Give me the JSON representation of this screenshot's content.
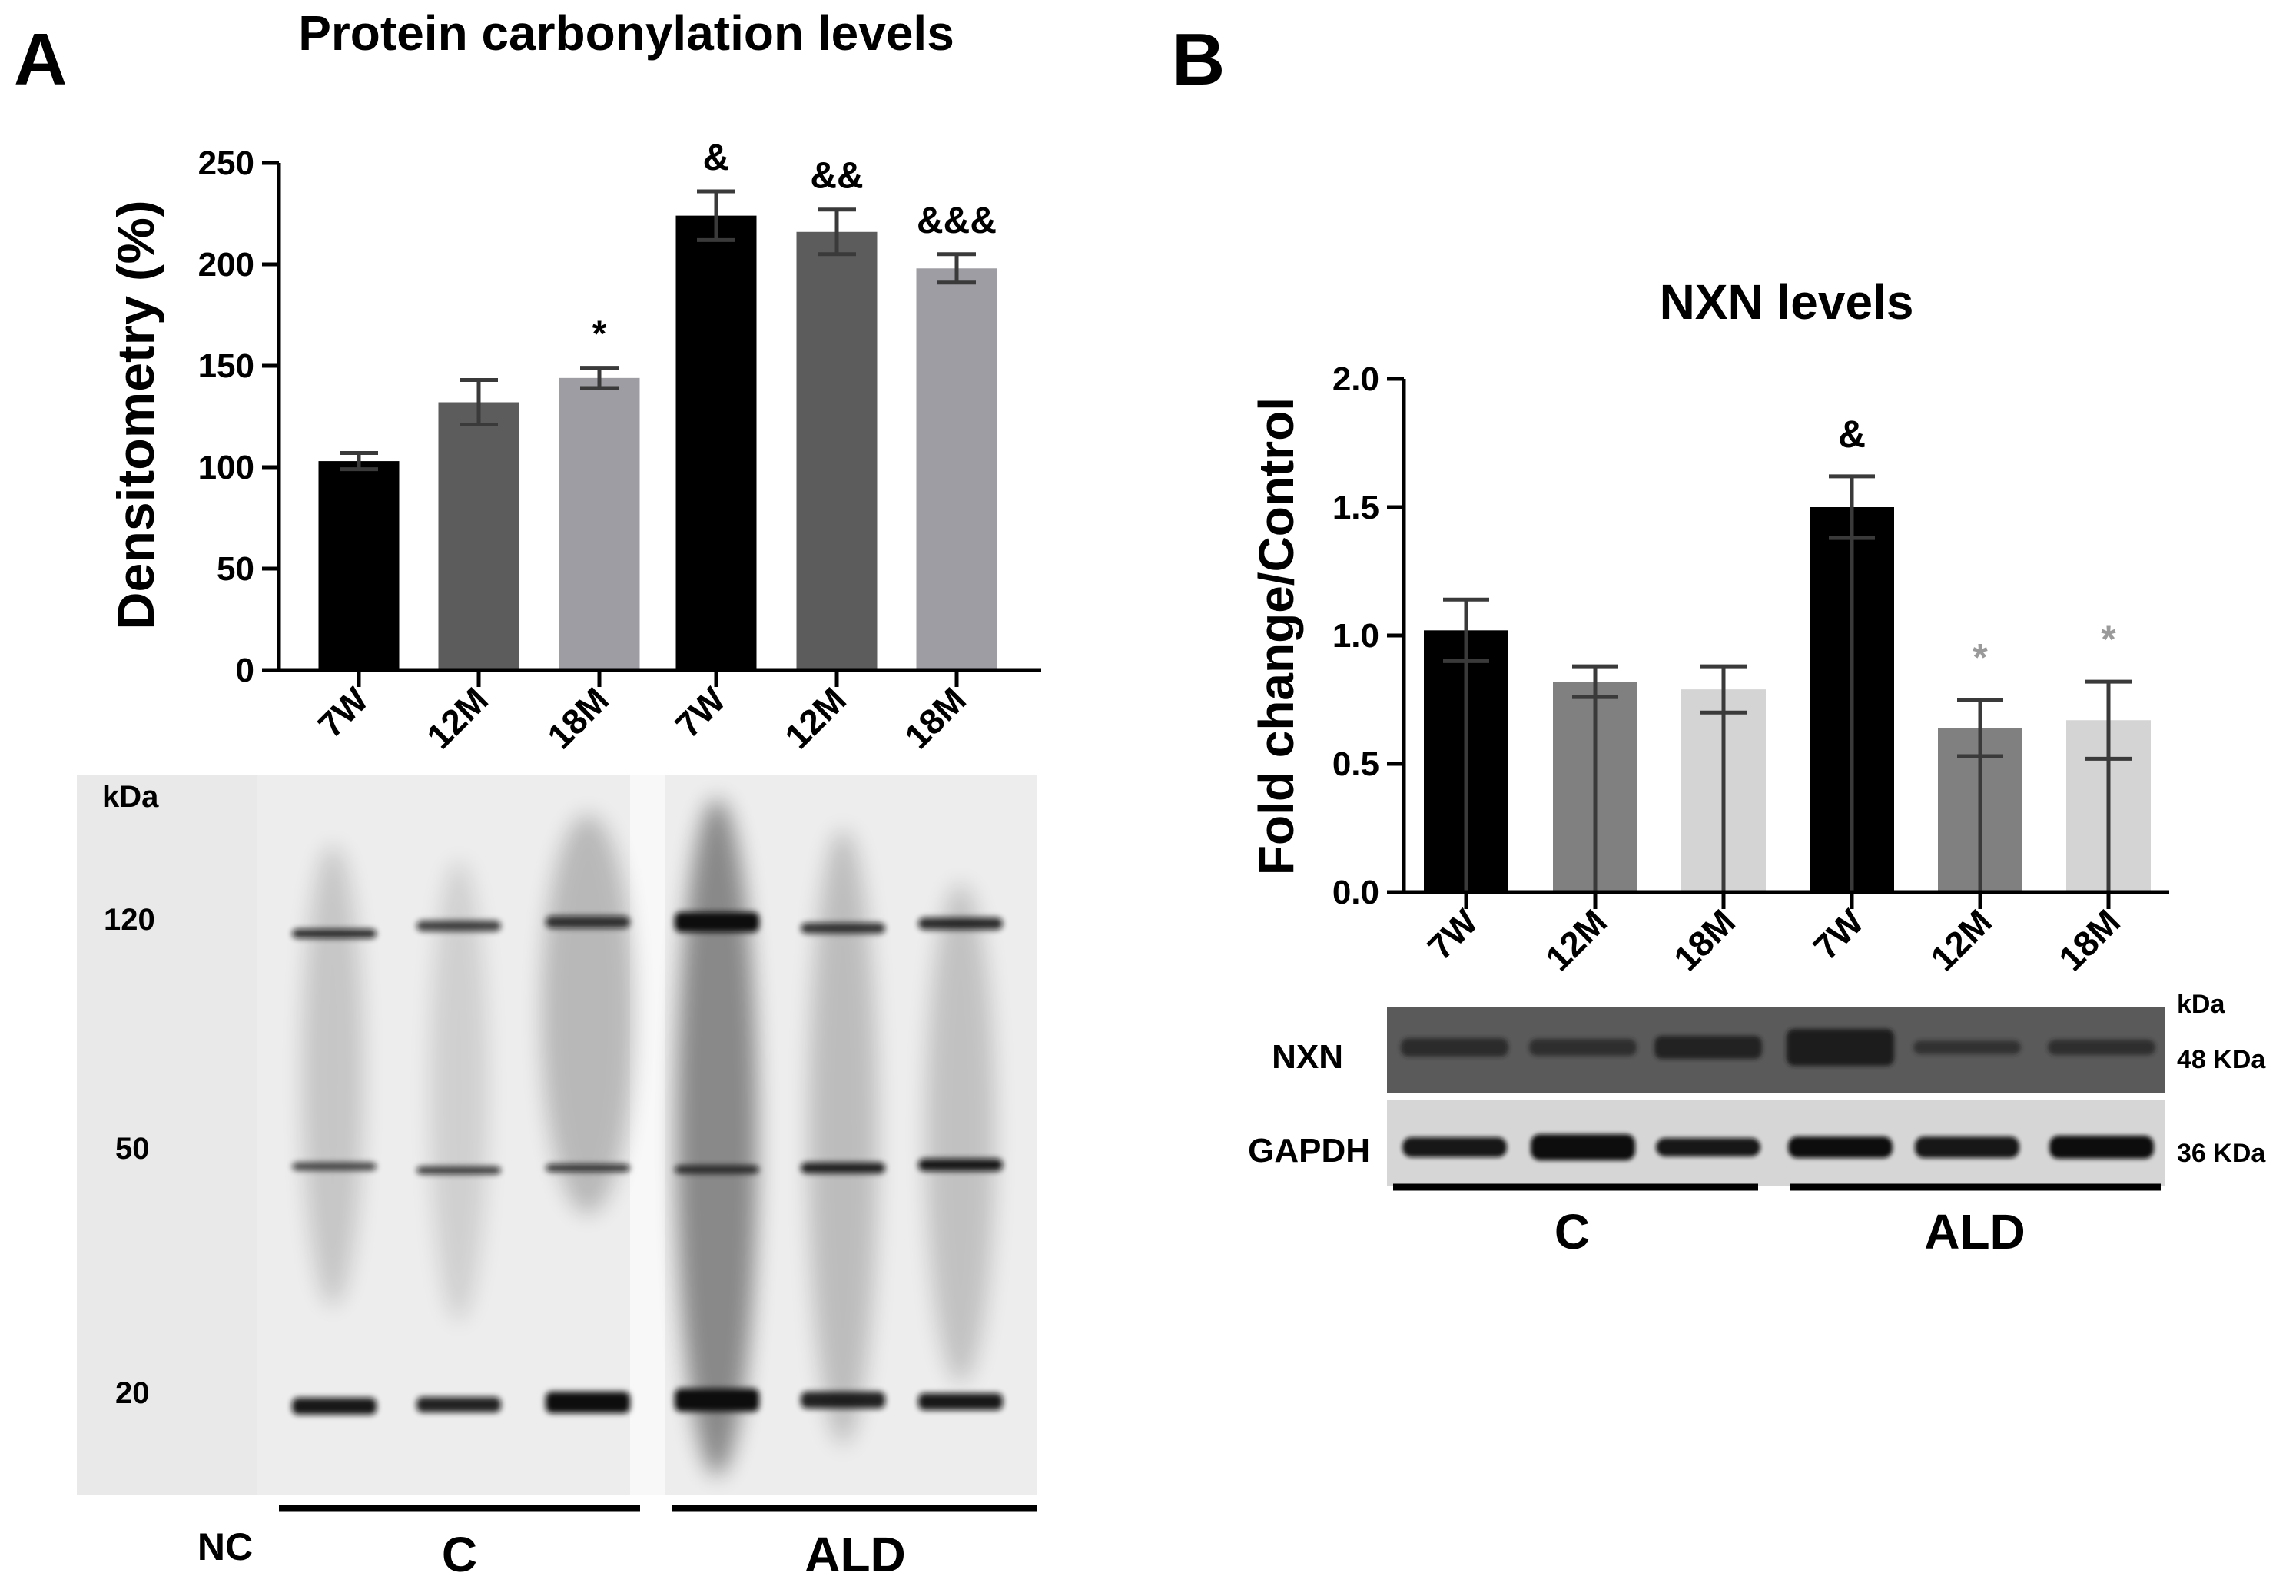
{
  "panel_a": {
    "letter": "A",
    "title": "Protein carbonylation levels",
    "ylabel": "Densitometry (%)",
    "yticks": [
      "0",
      "50",
      "100",
      "150",
      "200",
      "250"
    ],
    "xticks": [
      "7W",
      "12M",
      "18M",
      "7W",
      "12M",
      "18M"
    ],
    "significance": [
      "",
      "",
      "*",
      "&",
      "&&",
      "&&&"
    ],
    "blot": {
      "kda_header": "kDa",
      "markers": [
        "120",
        "50",
        "20"
      ],
      "nc_label": "NC",
      "groups": [
        "C",
        "ALD"
      ]
    }
  },
  "panel_b": {
    "letter": "B",
    "title": "NXN levels",
    "ylabel": "Fold change/Control",
    "yticks": [
      "0.0",
      "0.5",
      "1.0",
      "1.5",
      "2.0"
    ],
    "xticks": [
      "7W",
      "12M",
      "18M",
      "7W",
      "12M",
      "18M"
    ],
    "significance": [
      "",
      "",
      "",
      "&",
      "*",
      "*"
    ],
    "blot": {
      "kda_header": "kDa",
      "rows": [
        {
          "label": "NXN",
          "size": "48 KDa"
        },
        {
          "label": "GAPDH",
          "size": "36 KDa"
        }
      ],
      "groups": [
        "C",
        "ALD"
      ]
    }
  },
  "colors": {
    "bar_c_7w": "#000000",
    "bar_c_12m": "#5c5c5c",
    "bar_c_18m": "#9d9da3",
    "bar_b_12m": "#808080",
    "bar_b_18m": "#d4d4d4",
    "star_gray": "#9a9a9a"
  },
  "chart_data": [
    {
      "type": "bar",
      "title": "Protein carbonylation levels",
      "ylabel": "Densitometry (%)",
      "xlabel": "",
      "categories": [
        "7W",
        "12M",
        "18M",
        "7W",
        "12M",
        "18M"
      ],
      "groups": [
        "C",
        "C",
        "C",
        "ALD",
        "ALD",
        "ALD"
      ],
      "values": [
        103,
        132,
        144,
        224,
        216,
        198
      ],
      "errors": [
        4,
        11,
        5,
        12,
        11,
        7
      ],
      "ylim": [
        0,
        250
      ],
      "grid": false
    },
    {
      "type": "bar",
      "title": "NXN levels",
      "ylabel": "Fold change/Control",
      "xlabel": "",
      "categories": [
        "7W",
        "12M",
        "18M",
        "7W",
        "12M",
        "18M"
      ],
      "groups": [
        "C",
        "C",
        "C",
        "ALD",
        "ALD",
        "ALD"
      ],
      "values": [
        1.02,
        0.82,
        0.79,
        1.5,
        0.64,
        0.67
      ],
      "errors": [
        0.12,
        0.06,
        0.09,
        0.12,
        0.11,
        0.15
      ],
      "ylim": [
        0,
        2
      ],
      "grid": false
    }
  ]
}
